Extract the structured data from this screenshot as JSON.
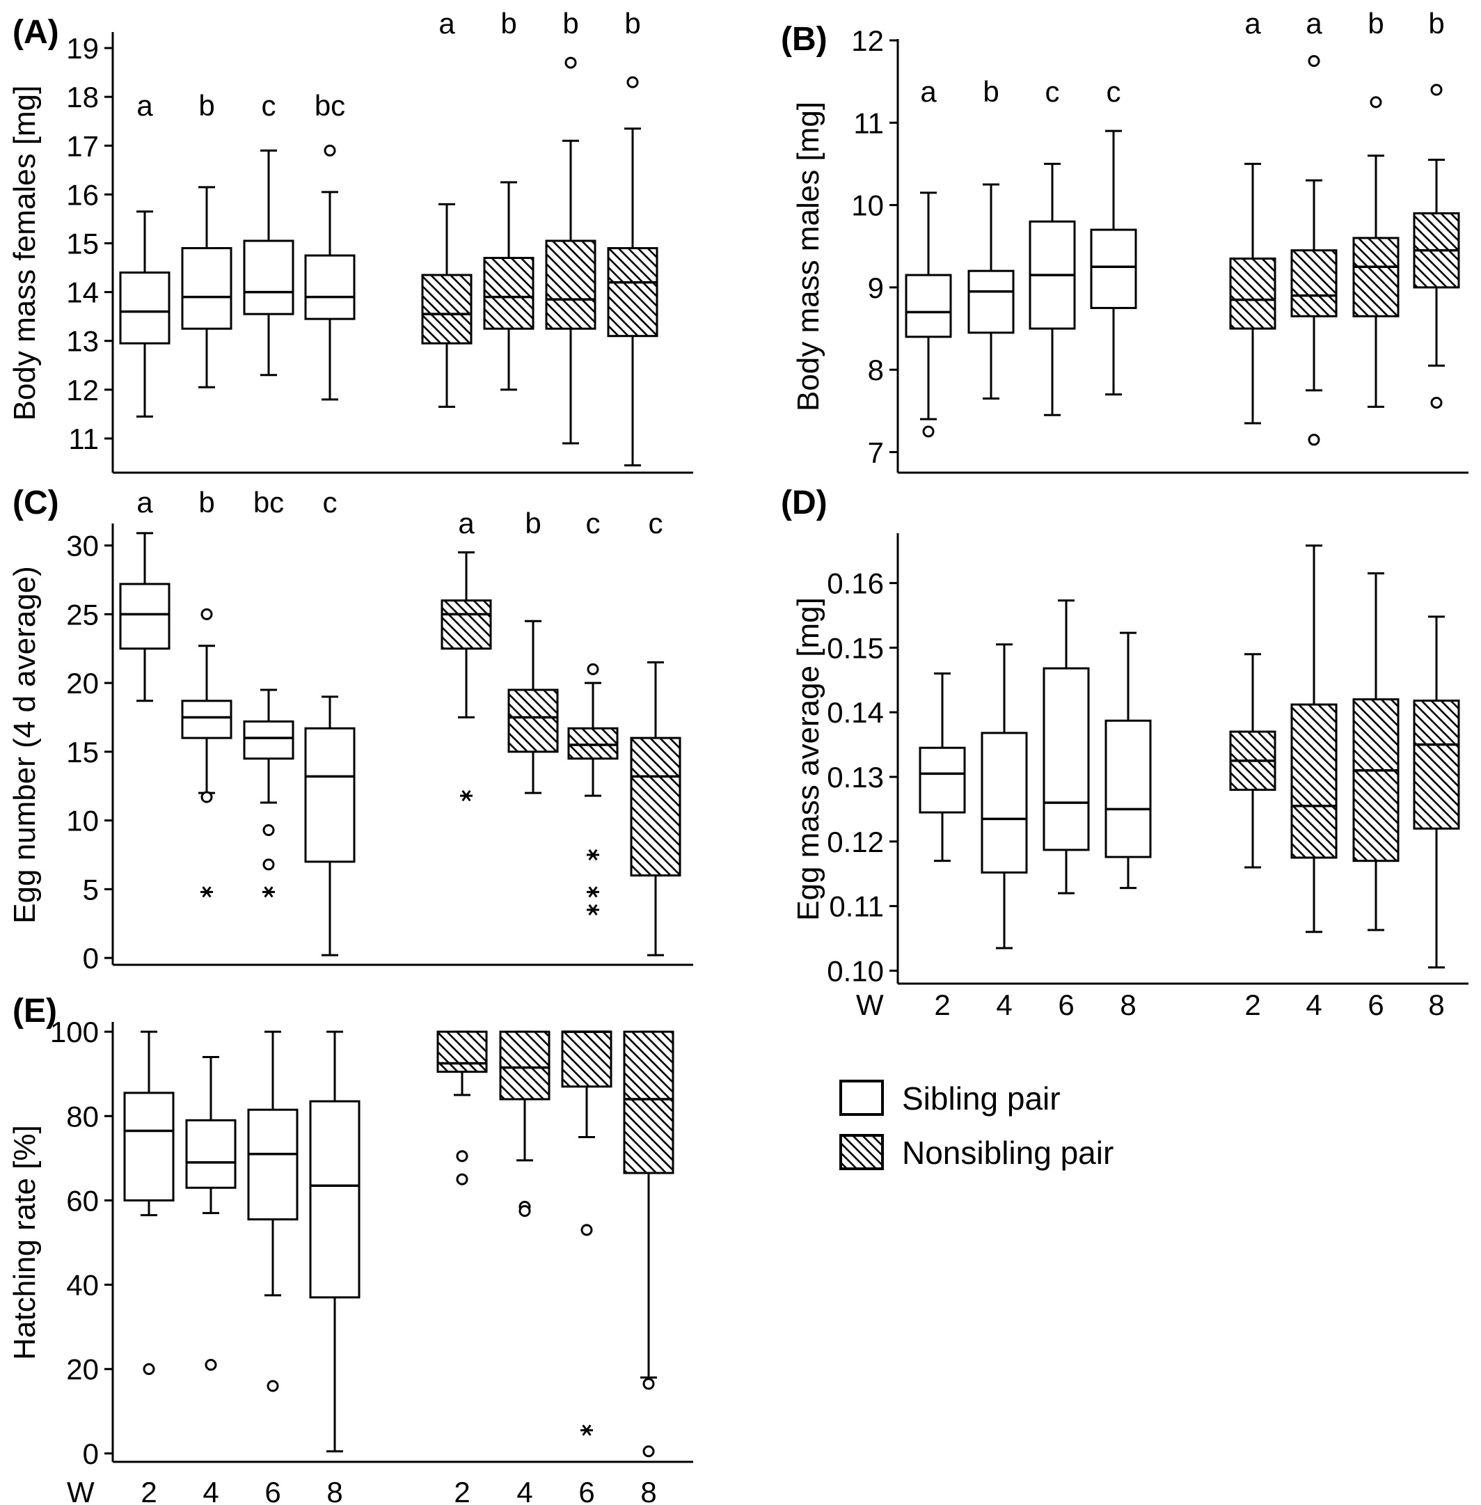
{
  "legend": {
    "items": [
      {
        "label": "Sibling pair",
        "hatched": false
      },
      {
        "label": "Nonsibling pair",
        "hatched": true
      }
    ]
  },
  "x_axis": {
    "prefix": "W",
    "ticks": [
      "2",
      "4",
      "6",
      "8"
    ]
  },
  "chart_data": [
    {
      "panel": "(A)",
      "type": "box",
      "ylabel": "Body mass females [mg]",
      "ylim": [
        10.3,
        19.3
      ],
      "yticks": [
        11,
        12,
        13,
        14,
        15,
        16,
        17,
        18,
        19
      ],
      "groups": [
        {
          "group": "Sibling pair",
          "boxes": [
            {
              "w": "2",
              "min": 11.45,
              "q1": 12.95,
              "median": 13.6,
              "q3": 14.4,
              "max": 15.65,
              "outliers": [],
              "extremes": [],
              "letter": "a"
            },
            {
              "w": "4",
              "min": 12.05,
              "q1": 13.25,
              "median": 13.9,
              "q3": 14.9,
              "max": 16.15,
              "outliers": [],
              "extremes": [],
              "letter": "b"
            },
            {
              "w": "6",
              "min": 12.3,
              "q1": 13.55,
              "median": 14.0,
              "q3": 15.05,
              "max": 16.9,
              "outliers": [],
              "extremes": [],
              "letter": "c"
            },
            {
              "w": "8",
              "min": 11.8,
              "q1": 13.45,
              "median": 13.9,
              "q3": 14.75,
              "max": 16.05,
              "outliers": [
                16.9
              ],
              "extremes": [],
              "letter": "bc"
            }
          ]
        },
        {
          "group": "Nonsibling pair",
          "boxes": [
            {
              "w": "2",
              "min": 11.65,
              "q1": 12.95,
              "median": 13.55,
              "q3": 14.35,
              "max": 15.8,
              "outliers": [],
              "extremes": [],
              "letter": "a"
            },
            {
              "w": "4",
              "min": 12.0,
              "q1": 13.25,
              "median": 13.9,
              "q3": 14.7,
              "max": 16.25,
              "outliers": [],
              "extremes": [],
              "letter": "b"
            },
            {
              "w": "6",
              "min": 10.9,
              "q1": 13.25,
              "median": 13.85,
              "q3": 15.05,
              "max": 17.1,
              "outliers": [
                18.7
              ],
              "extremes": [],
              "letter": "b"
            },
            {
              "w": "8",
              "min": 10.45,
              "q1": 13.1,
              "median": 14.2,
              "q3": 14.9,
              "max": 17.35,
              "outliers": [
                18.3
              ],
              "extremes": [],
              "letter": "b"
            }
          ]
        }
      ]
    },
    {
      "panel": "(B)",
      "type": "box",
      "ylabel": "Body mass males [mg]",
      "ylim": [
        6.75,
        12.0
      ],
      "yticks": [
        7,
        8,
        9,
        10,
        11,
        12
      ],
      "groups": [
        {
          "group": "Sibling pair",
          "boxes": [
            {
              "w": "2",
              "min": 7.4,
              "q1": 8.4,
              "median": 8.7,
              "q3": 9.15,
              "max": 10.15,
              "outliers": [
                7.25
              ],
              "extremes": [],
              "letter": "a"
            },
            {
              "w": "4",
              "min": 7.65,
              "q1": 8.45,
              "median": 8.95,
              "q3": 9.2,
              "max": 10.25,
              "outliers": [],
              "extremes": [],
              "letter": "b"
            },
            {
              "w": "6",
              "min": 7.45,
              "q1": 8.5,
              "median": 9.15,
              "q3": 9.8,
              "max": 10.5,
              "outliers": [],
              "extremes": [],
              "letter": "c"
            },
            {
              "w": "8",
              "min": 7.7,
              "q1": 8.75,
              "median": 9.25,
              "q3": 9.7,
              "max": 10.9,
              "outliers": [],
              "extremes": [],
              "letter": "c"
            }
          ]
        },
        {
          "group": "Nonsibling pair",
          "boxes": [
            {
              "w": "2",
              "min": 7.35,
              "q1": 8.5,
              "median": 8.85,
              "q3": 9.35,
              "max": 10.5,
              "outliers": [],
              "extremes": [],
              "letter": "a"
            },
            {
              "w": "4",
              "min": 7.75,
              "q1": 8.65,
              "median": 8.9,
              "q3": 9.45,
              "max": 10.3,
              "outliers": [
                11.75,
                7.15
              ],
              "extremes": [],
              "letter": "a"
            },
            {
              "w": "6",
              "min": 7.55,
              "q1": 8.65,
              "median": 9.25,
              "q3": 9.6,
              "max": 10.6,
              "outliers": [
                11.25
              ],
              "extremes": [],
              "letter": "b"
            },
            {
              "w": "8",
              "min": 8.05,
              "q1": 9.0,
              "median": 9.45,
              "q3": 9.9,
              "max": 10.55,
              "outliers": [
                11.4,
                7.6
              ],
              "extremes": [],
              "letter": "b"
            }
          ]
        }
      ]
    },
    {
      "panel": "(C)",
      "type": "box",
      "ylabel": "Egg number (4 d average)",
      "ylim": [
        -0.5,
        31.5
      ],
      "yticks": [
        0,
        5,
        10,
        15,
        20,
        25,
        30
      ],
      "groups": [
        {
          "group": "Sibling pair",
          "boxes": [
            {
              "w": "2",
              "min": 18.7,
              "q1": 22.5,
              "median": 25.0,
              "q3": 27.2,
              "max": 30.9,
              "outliers": [],
              "extremes": [],
              "letter": "a"
            },
            {
              "w": "4",
              "min": 12.0,
              "q1": 16.0,
              "median": 17.5,
              "q3": 18.7,
              "max": 22.7,
              "outliers": [
                25.0,
                11.7
              ],
              "extremes": [
                4.8
              ],
              "letter": "b"
            },
            {
              "w": "6",
              "min": 11.3,
              "q1": 14.5,
              "median": 16.0,
              "q3": 17.2,
              "max": 19.5,
              "outliers": [
                9.3,
                6.8
              ],
              "extremes": [
                4.8
              ],
              "letter": "bc"
            },
            {
              "w": "8",
              "min": 0.2,
              "q1": 7.0,
              "median": 13.2,
              "q3": 16.7,
              "max": 19.0,
              "outliers": [],
              "extremes": [],
              "letter": "c"
            }
          ]
        },
        {
          "group": "Nonsibling pair",
          "boxes": [
            {
              "w": "2",
              "min": 17.5,
              "q1": 22.5,
              "median": 25.0,
              "q3": 26.0,
              "max": 29.5,
              "outliers": [],
              "extremes": [
                11.8
              ],
              "letter": "a"
            },
            {
              "w": "4",
              "min": 12.0,
              "q1": 15.0,
              "median": 17.5,
              "q3": 19.5,
              "max": 24.5,
              "outliers": [],
              "extremes": [],
              "letter": "b"
            },
            {
              "w": "6",
              "min": 11.8,
              "q1": 14.5,
              "median": 15.5,
              "q3": 16.7,
              "max": 20.0,
              "outliers": [
                21.0
              ],
              "extremes": [
                7.5,
                4.8,
                3.5
              ],
              "letter": "c"
            },
            {
              "w": "8",
              "min": 0.2,
              "q1": 6.0,
              "median": 13.2,
              "q3": 16.0,
              "max": 21.5,
              "outliers": [],
              "extremes": [],
              "letter": "c"
            }
          ]
        }
      ]
    },
    {
      "panel": "(D)",
      "type": "box",
      "ylabel": "Egg mass average [mg]",
      "ylim": [
        0.098,
        0.1675
      ],
      "yticks": [
        "0.10",
        "0.11",
        "0.12",
        "0.13",
        "0.14",
        "0.15",
        "0.16"
      ],
      "groups": [
        {
          "group": "Sibling pair",
          "boxes": [
            {
              "w": "2",
              "min": 0.117,
              "q1": 0.1245,
              "median": 0.1305,
              "q3": 0.1345,
              "max": 0.146,
              "outliers": [],
              "extremes": [],
              "letter": ""
            },
            {
              "w": "4",
              "min": 0.1035,
              "q1": 0.1152,
              "median": 0.1235,
              "q3": 0.1368,
              "max": 0.1505,
              "outliers": [],
              "extremes": [],
              "letter": ""
            },
            {
              "w": "6",
              "min": 0.112,
              "q1": 0.1187,
              "median": 0.126,
              "q3": 0.1468,
              "max": 0.1573,
              "outliers": [],
              "extremes": [],
              "letter": ""
            },
            {
              "w": "8",
              "min": 0.1128,
              "q1": 0.1176,
              "median": 0.125,
              "q3": 0.1387,
              "max": 0.1523,
              "outliers": [],
              "extremes": [],
              "letter": ""
            }
          ]
        },
        {
          "group": "Nonsibling pair",
          "boxes": [
            {
              "w": "2",
              "min": 0.116,
              "q1": 0.128,
              "median": 0.1325,
              "q3": 0.137,
              "max": 0.149,
              "outliers": [],
              "extremes": [],
              "letter": ""
            },
            {
              "w": "4",
              "min": 0.106,
              "q1": 0.1175,
              "median": 0.1255,
              "q3": 0.1412,
              "max": 0.1658,
              "outliers": [],
              "extremes": [],
              "letter": ""
            },
            {
              "w": "6",
              "min": 0.1063,
              "q1": 0.117,
              "median": 0.131,
              "q3": 0.142,
              "max": 0.1615,
              "outliers": [],
              "extremes": [],
              "letter": ""
            },
            {
              "w": "8",
              "min": 0.1005,
              "q1": 0.122,
              "median": 0.135,
              "q3": 0.1418,
              "max": 0.1548,
              "outliers": [],
              "extremes": [],
              "letter": ""
            }
          ]
        }
      ]
    },
    {
      "panel": "(E)",
      "type": "box",
      "ylabel": "Hatching rate [%]",
      "ylim": [
        -2,
        102
      ],
      "yticks": [
        0,
        20,
        40,
        60,
        80,
        100
      ],
      "groups": [
        {
          "group": "Sibling pair",
          "boxes": [
            {
              "w": "2",
              "min": 56.5,
              "q1": 60.0,
              "median": 76.5,
              "q3": 85.5,
              "max": 100.0,
              "outliers": [
                20.0
              ],
              "extremes": [],
              "letter": ""
            },
            {
              "w": "4",
              "min": 57.0,
              "q1": 63.0,
              "median": 69.0,
              "q3": 79.0,
              "max": 94.0,
              "outliers": [
                21.0
              ],
              "extremes": [],
              "letter": ""
            },
            {
              "w": "6",
              "min": 37.5,
              "q1": 55.5,
              "median": 71.0,
              "q3": 81.5,
              "max": 100.0,
              "outliers": [
                16.0
              ],
              "extremes": [],
              "letter": ""
            },
            {
              "w": "8",
              "min": 0.5,
              "q1": 37.0,
              "median": 63.5,
              "q3": 83.5,
              "max": 100.0,
              "outliers": [],
              "extremes": [],
              "letter": ""
            }
          ]
        },
        {
          "group": "Nonsibling pair",
          "boxes": [
            {
              "w": "2",
              "min": 85.0,
              "q1": 90.5,
              "median": 92.5,
              "q3": 100.0,
              "max": 100.0,
              "outliers": [
                70.5,
                65.0
              ],
              "extremes": [],
              "letter": ""
            },
            {
              "w": "4",
              "min": 69.5,
              "q1": 84.0,
              "median": 91.5,
              "q3": 100.0,
              "max": 100.0,
              "outliers": [
                58.5,
                57.5
              ],
              "extremes": [],
              "letter": ""
            },
            {
              "w": "6",
              "min": 75.0,
              "q1": 87.0,
              "median": 100.0,
              "q3": 100.0,
              "max": 100.0,
              "outliers": [
                53.0
              ],
              "extremes": [
                5.5
              ],
              "letter": ""
            },
            {
              "w": "8",
              "min": 18.0,
              "q1": 66.5,
              "median": 84.0,
              "q3": 100.0,
              "max": 100.0,
              "outliers": [
                16.5,
                0.5
              ],
              "extremes": [],
              "letter": ""
            }
          ]
        }
      ]
    }
  ]
}
